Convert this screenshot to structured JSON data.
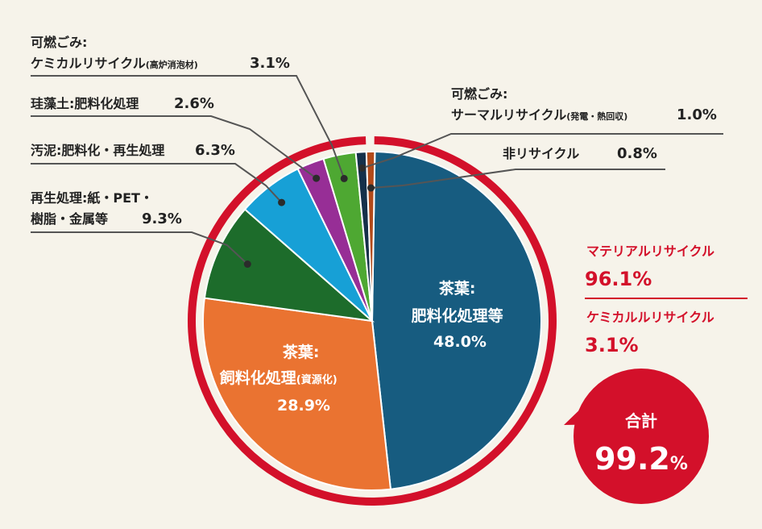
{
  "chart_data": {
    "type": "pie",
    "unit": "%",
    "slices": [
      {
        "id": "chaba_hiryo",
        "label_lines": [
          "茶葉:",
          "肥料化処理等"
        ],
        "value": 48.0,
        "value_text": "48.0%",
        "color": "#175c80"
      },
      {
        "id": "chaba_shiryo",
        "label_lines": [
          "茶葉:",
          "飼料化処理",
          "(資源化)"
        ],
        "value": 28.9,
        "value_text": "28.9%",
        "color": "#ea7331"
      },
      {
        "id": "saisei",
        "label_lines": [
          "再生処理:紙・PET・",
          "樹脂・金属等"
        ],
        "value": 9.3,
        "value_text": "9.3%",
        "color": "#1d6c2b"
      },
      {
        "id": "odei",
        "label_lines": [
          "汚泥:肥料化・再生処理"
        ],
        "value": 6.3,
        "value_text": "6.3%",
        "color": "#17a0d6"
      },
      {
        "id": "keisoudo",
        "label_lines": [
          "珪藻土:肥料化処理"
        ],
        "value": 2.6,
        "value_text": "2.6%",
        "color": "#972e96"
      },
      {
        "id": "chemical",
        "label_lines": [
          "可燃ごみ:",
          "ケミカルリサイクル",
          "(高炉消泡材)"
        ],
        "value": 3.1,
        "value_text": "3.1%",
        "color": "#4ea832"
      },
      {
        "id": "thermal",
        "label_lines": [
          "可燃ごみ:",
          "サーマルリサイクル",
          "(発電・熱回収)"
        ],
        "value": 1.0,
        "value_text": "1.0%",
        "color": "#15304a"
      },
      {
        "id": "non_recycle",
        "label_lines": [
          "非リサイクル"
        ],
        "value": 0.8,
        "value_text": "0.8%",
        "color": "#b24a1a"
      }
    ],
    "summary": [
      {
        "label": "マテリアルリサイクル",
        "value": 96.1,
        "value_text": "96.1%"
      },
      {
        "label": "ケミカルルリサイクル",
        "value": 3.1,
        "value_text": "3.1%"
      }
    ],
    "total": {
      "label": "合計",
      "value": 99.2,
      "value_text": "99.2",
      "unit": "%"
    },
    "accent_color": "#d3102a"
  }
}
